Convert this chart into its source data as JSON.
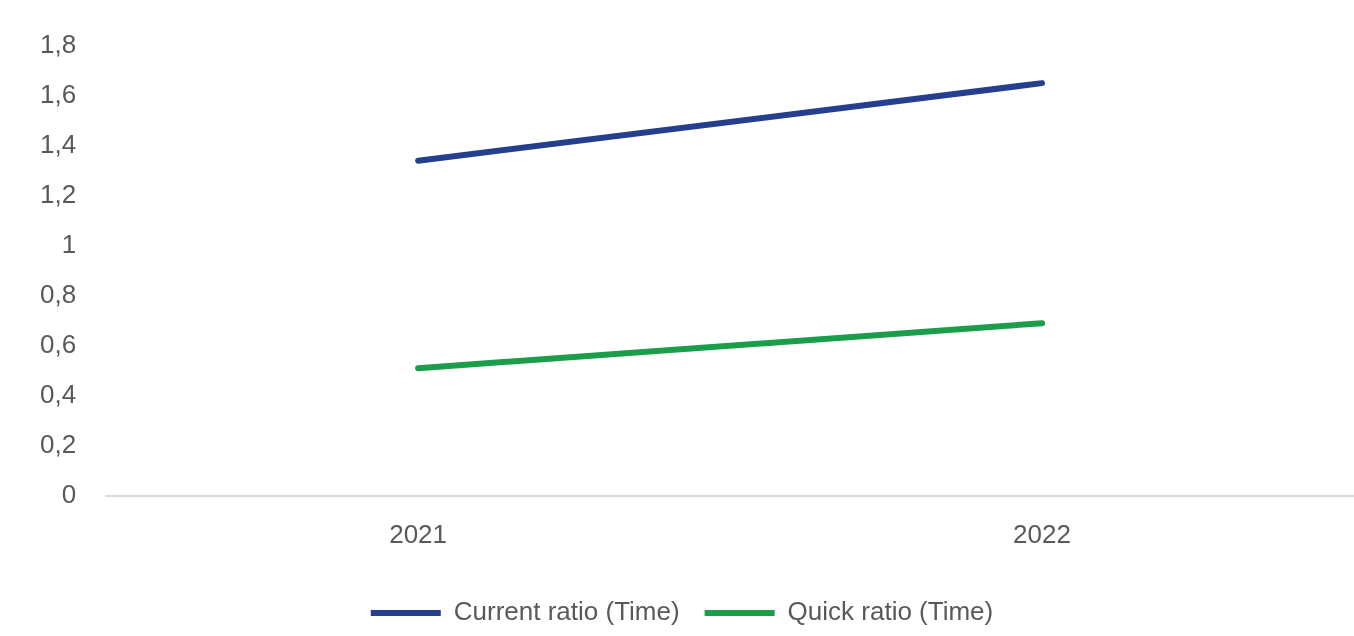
{
  "chart_data": {
    "type": "line",
    "categories": [
      "2021",
      "2022"
    ],
    "series": [
      {
        "name": "Current ratio (Time)",
        "color": "#253f8e",
        "values": [
          1.34,
          1.65
        ]
      },
      {
        "name": "Quick ratio (Time)",
        "color": "#1a9e4a",
        "values": [
          0.51,
          0.69
        ]
      }
    ],
    "ylim": [
      0,
      1.8
    ],
    "yticks": [
      {
        "value": 0,
        "label": "0"
      },
      {
        "value": 0.2,
        "label": "0,2"
      },
      {
        "value": 0.4,
        "label": "0,4"
      },
      {
        "value": 0.6,
        "label": "0,6"
      },
      {
        "value": 0.8,
        "label": "0,8"
      },
      {
        "value": 1,
        "label": "1"
      },
      {
        "value": 1.2,
        "label": "1,2"
      },
      {
        "value": 1.4,
        "label": "1,4"
      },
      {
        "value": 1.6,
        "label": "1,6"
      },
      {
        "value": 1.8,
        "label": "1,8"
      }
    ],
    "legend": "bottom",
    "marker": "none",
    "line_style": "solid"
  }
}
